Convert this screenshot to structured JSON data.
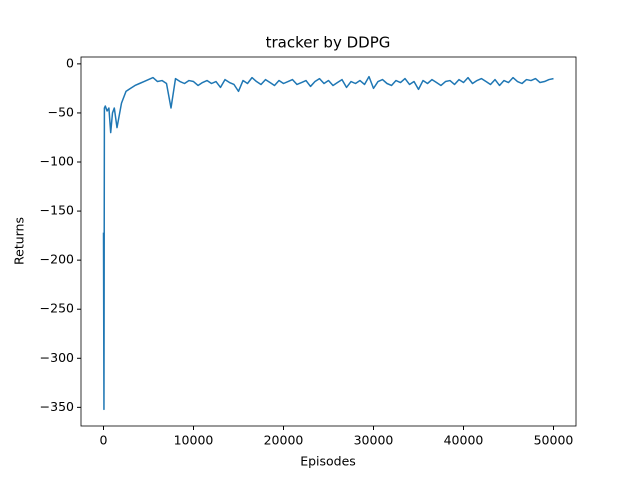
{
  "chart_data": {
    "type": "line",
    "title": "tracker by DDPG",
    "x_label": "Episodes",
    "y_label": "Returns",
    "x": [
      0,
      50,
      100,
      200,
      400,
      600,
      800,
      1000,
      1200,
      1500,
      2000,
      2500,
      3000,
      3500,
      4000,
      4500,
      5000,
      5500,
      6000,
      6500,
      7000,
      7500,
      8000,
      8500,
      9000,
      9500,
      10000,
      10500,
      11000,
      11500,
      12000,
      12500,
      13000,
      13500,
      14000,
      14500,
      15000,
      15500,
      16000,
      16500,
      17000,
      17500,
      18000,
      18500,
      19000,
      19500,
      20000,
      20500,
      21000,
      21500,
      22000,
      22500,
      23000,
      23500,
      24000,
      24500,
      25000,
      25500,
      26000,
      26500,
      27000,
      27500,
      28000,
      28500,
      29000,
      29500,
      30000,
      30500,
      31000,
      31500,
      32000,
      32500,
      33000,
      33500,
      34000,
      34500,
      35000,
      35500,
      36000,
      36500,
      37000,
      37500,
      38000,
      38500,
      39000,
      39500,
      40000,
      40500,
      41000,
      41500,
      42000,
      42500,
      43000,
      43500,
      44000,
      44500,
      45000,
      45500,
      46000,
      46500,
      47000,
      47500,
      48000,
      48500,
      49000,
      49500,
      50000
    ],
    "series": [
      {
        "name": "Returns",
        "color": "#1f77b4",
        "values": [
          -172,
          -352,
          -45,
          -43,
          -48,
          -45,
          -70,
          -50,
          -45,
          -65,
          -40,
          -28,
          -25,
          -22,
          -20,
          -18,
          -16,
          -14,
          -18,
          -17,
          -20,
          -45,
          -15,
          -18,
          -20,
          -17,
          -18,
          -22,
          -19,
          -17,
          -20,
          -18,
          -24,
          -16,
          -19,
          -21,
          -28,
          -17,
          -20,
          -14,
          -18,
          -21,
          -16,
          -19,
          -22,
          -17,
          -20,
          -18,
          -16,
          -21,
          -19,
          -17,
          -23,
          -18,
          -15,
          -20,
          -17,
          -22,
          -19,
          -16,
          -24,
          -18,
          -20,
          -17,
          -21,
          -13,
          -25,
          -18,
          -16,
          -20,
          -22,
          -17,
          -19,
          -15,
          -21,
          -18,
          -26,
          -17,
          -20,
          -16,
          -19,
          -22,
          -18,
          -17,
          -21,
          -16,
          -19,
          -14,
          -20,
          -17,
          -15,
          -18,
          -21,
          -16,
          -22,
          -17,
          -19,
          -14,
          -18,
          -20,
          -16,
          -17,
          -15,
          -19,
          -18,
          -16,
          -15
        ]
      }
    ],
    "xlim": [
      -2500,
      52500
    ],
    "ylim": [
      -369,
      7
    ],
    "xticks": [
      0,
      10000,
      20000,
      30000,
      40000,
      50000
    ],
    "yticks": [
      0,
      {
        "value": -50,
        "label": "−50"
      },
      {
        "value": -100,
        "label": "−100"
      },
      {
        "value": -150,
        "label": "−150"
      },
      {
        "value": -200,
        "label": "−200"
      },
      {
        "value": -250,
        "label": "−250"
      },
      {
        "value": -300,
        "label": "−300"
      },
      {
        "value": -350,
        "label": "−350"
      }
    ]
  }
}
